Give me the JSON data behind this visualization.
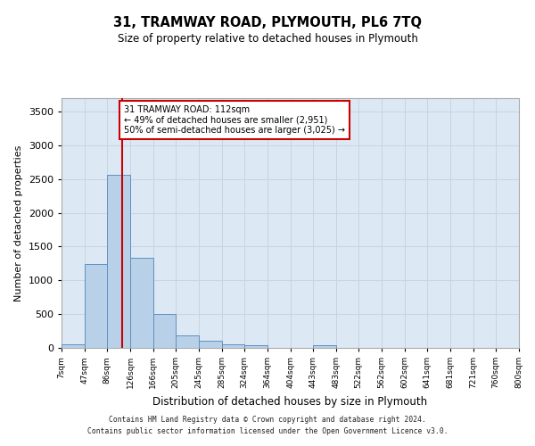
{
  "title": "31, TRAMWAY ROAD, PLYMOUTH, PL6 7TQ",
  "subtitle": "Size of property relative to detached houses in Plymouth",
  "xlabel": "Distribution of detached houses by size in Plymouth",
  "ylabel": "Number of detached properties",
  "footer_line1": "Contains HM Land Registry data © Crown copyright and database right 2024.",
  "footer_line2": "Contains public sector information licensed under the Open Government Licence v3.0.",
  "bin_edges": [
    7,
    47,
    86,
    126,
    166,
    205,
    245,
    285,
    324,
    364,
    404,
    443,
    483,
    522,
    562,
    602,
    641,
    681,
    721,
    760,
    800
  ],
  "bin_counts": [
    50,
    1240,
    2570,
    1340,
    500,
    190,
    100,
    50,
    45,
    0,
    0,
    45,
    0,
    0,
    0,
    0,
    0,
    0,
    0,
    0
  ],
  "bar_color": "#b8d0e8",
  "bar_edge_color": "#6090c0",
  "grid_color": "#c8d4e4",
  "bg_color": "#dce8f4",
  "property_line_x": 112,
  "property_line_color": "#cc0000",
  "annotation_text": "31 TRAMWAY ROAD: 112sqm\n← 49% of detached houses are smaller (2,951)\n50% of semi-detached houses are larger (3,025) →",
  "annotation_box_color": "#cc0000",
  "ylim": [
    0,
    3700
  ],
  "yticks": [
    0,
    500,
    1000,
    1500,
    2000,
    2500,
    3000,
    3500
  ],
  "tick_labels": [
    "7sqm",
    "47sqm",
    "86sqm",
    "126sqm",
    "166sqm",
    "205sqm",
    "245sqm",
    "285sqm",
    "324sqm",
    "364sqm",
    "404sqm",
    "443sqm",
    "483sqm",
    "522sqm",
    "562sqm",
    "602sqm",
    "641sqm",
    "681sqm",
    "721sqm",
    "760sqm",
    "800sqm"
  ]
}
